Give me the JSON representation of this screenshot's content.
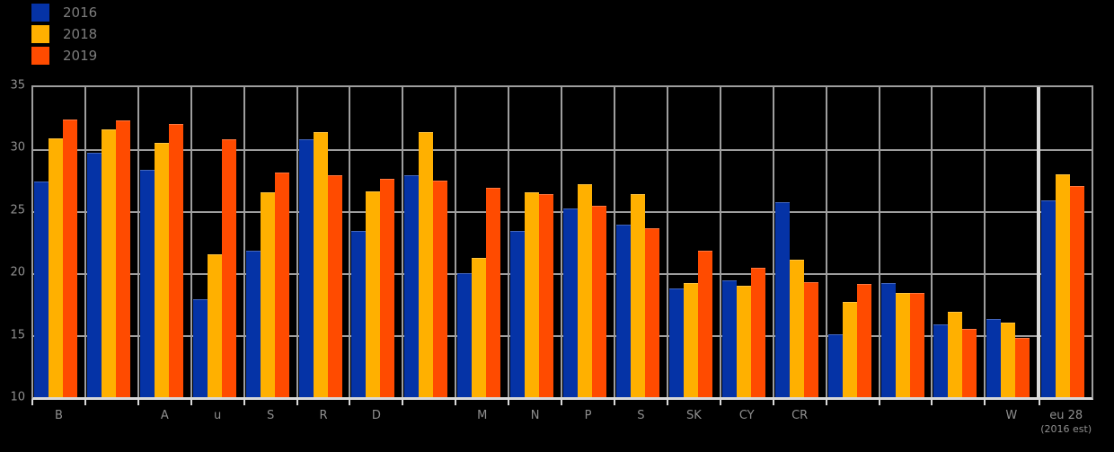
{
  "legend": [
    {
      "label": "2016",
      "color": "#0533a6"
    },
    {
      "label": "2018",
      "color": "#ffb000"
    },
    {
      "label": "2019",
      "color": "#ff4b00"
    }
  ],
  "chart_data": {
    "type": "bar",
    "title": "",
    "xlabel": "",
    "ylabel": "",
    "ylim": [
      10,
      35
    ],
    "yticks": [
      "35",
      "30",
      "25",
      "20",
      "15",
      "10"
    ],
    "grid": true,
    "legend_position": "top-left",
    "background_color": "#000000",
    "gridline_color": "#9e9e9e",
    "axis_text_color": "#8f8f8f",
    "separator_index": 19,
    "series": [
      {
        "name": "2016",
        "color": "#0533a6"
      },
      {
        "name": "2018",
        "color": "#ffb000"
      },
      {
        "name": "2019",
        "color": "#ff4b00"
      }
    ],
    "groups": [
      {
        "label": "B",
        "sublabel": "",
        "values": [
          27.4,
          30.9,
          32.4
        ]
      },
      {
        "label": "",
        "sublabel": "",
        "values": [
          29.7,
          31.6,
          32.3
        ]
      },
      {
        "label": "A",
        "sublabel": "",
        "values": [
          28.3,
          30.5,
          32.0
        ]
      },
      {
        "label": "u",
        "sublabel": "",
        "values": [
          17.9,
          21.5,
          30.8
        ]
      },
      {
        "label": "S",
        "sublabel": "",
        "values": [
          21.8,
          26.5,
          28.1
        ]
      },
      {
        "label": "R",
        "sublabel": "",
        "values": [
          30.8,
          31.4,
          27.9
        ]
      },
      {
        "label": "D",
        "sublabel": "",
        "values": [
          23.4,
          26.6,
          27.6
        ]
      },
      {
        "label": "",
        "sublabel": "",
        "values": [
          27.9,
          31.4,
          27.5
        ]
      },
      {
        "label": "M",
        "sublabel": "",
        "values": [
          20.0,
          21.2,
          26.9
        ]
      },
      {
        "label": "N",
        "sublabel": "",
        "values": [
          23.4,
          26.5,
          26.4
        ]
      },
      {
        "label": "P",
        "sublabel": "",
        "values": [
          25.2,
          27.2,
          25.4
        ]
      },
      {
        "label": "S",
        "sublabel": "",
        "values": [
          23.9,
          26.4,
          23.6
        ]
      },
      {
        "label": "SK",
        "sublabel": "",
        "values": [
          18.8,
          19.2,
          21.8
        ]
      },
      {
        "label": "CY",
        "sublabel": "",
        "values": [
          19.4,
          19.0,
          20.4
        ]
      },
      {
        "label": "CR",
        "sublabel": "",
        "values": [
          25.7,
          21.1,
          19.3
        ]
      },
      {
        "label": "",
        "sublabel": "",
        "values": [
          15.1,
          17.7,
          19.1
        ]
      },
      {
        "label": "",
        "sublabel": "",
        "values": [
          19.2,
          18.4,
          18.4
        ]
      },
      {
        "label": "",
        "sublabel": "",
        "values": [
          15.9,
          16.9,
          15.5
        ]
      },
      {
        "label": "W",
        "sublabel": "",
        "values": [
          16.3,
          16.0,
          14.8
        ]
      },
      {
        "label": "eu 28",
        "sublabel": "(2016 est)",
        "values": [
          25.9,
          28.0,
          27.0
        ]
      }
    ]
  }
}
